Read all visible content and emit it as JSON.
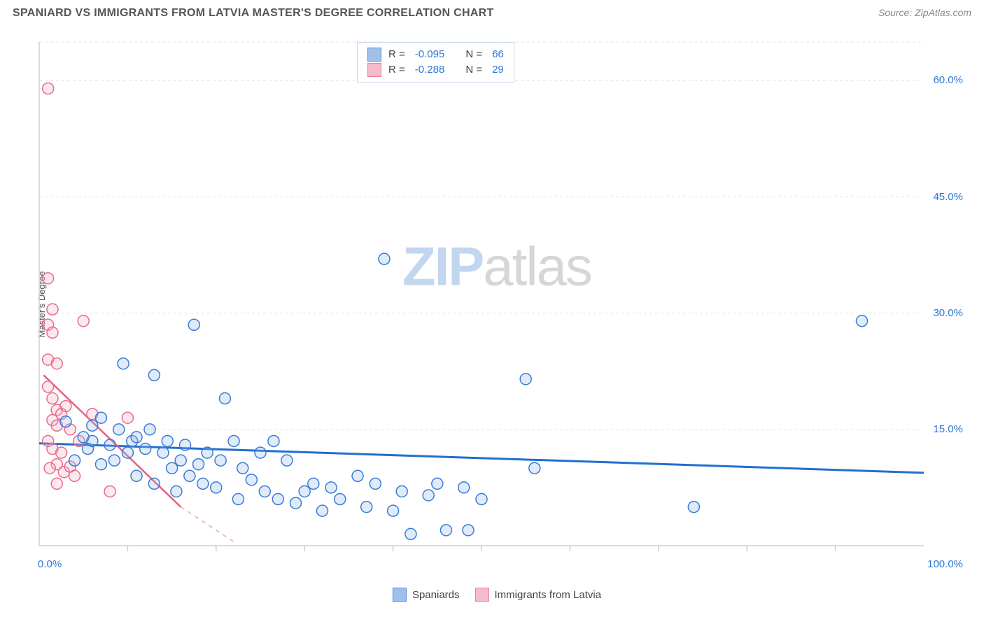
{
  "header": {
    "title": "SPANIARD VS IMMIGRANTS FROM LATVIA MASTER'S DEGREE CORRELATION CHART",
    "source": "Source: ZipAtlas.com"
  },
  "watermark": {
    "zip": "ZIP",
    "atlas": "atlas"
  },
  "chart": {
    "type": "scatter",
    "ylabel": "Master's Degree",
    "xlim": [
      0,
      100
    ],
    "ylim": [
      0,
      65
    ],
    "background_color": "#ffffff",
    "grid_color": "#e3e3e3",
    "grid_dash": "4,4",
    "axis_line_color": "#cfcfcf",
    "xtick_marks": [
      10,
      20,
      30,
      40,
      50,
      60,
      70,
      80,
      90
    ],
    "xtick_labels": [
      {
        "v": 0,
        "label": "0.0%"
      },
      {
        "v": 100,
        "label": "100.0%"
      }
    ],
    "ytick_labels": [
      {
        "v": 15,
        "label": "15.0%"
      },
      {
        "v": 30,
        "label": "30.0%"
      },
      {
        "v": 45,
        "label": "45.0%"
      },
      {
        "v": 60,
        "label": "60.0%"
      }
    ],
    "ygrid_lines": [
      15,
      30,
      45,
      60,
      65
    ],
    "marker_radius": 8,
    "marker_stroke_width": 1.5,
    "marker_fill_opacity": 0.28,
    "series": [
      {
        "name": "Spaniards",
        "color_stroke": "#3a7bd5",
        "color_fill": "#8fb6e8",
        "R": "-0.095",
        "N": "66",
        "trend": {
          "x1": 0,
          "y1": 13.2,
          "x2": 100,
          "y2": 9.4,
          "color": "#1f6fd1",
          "width": 3
        },
        "points": [
          [
            3,
            16
          ],
          [
            4,
            11
          ],
          [
            5,
            14
          ],
          [
            5.5,
            12.5
          ],
          [
            6,
            13.5
          ],
          [
            6,
            15.5
          ],
          [
            7,
            16.5
          ],
          [
            7,
            10.5
          ],
          [
            8,
            13
          ],
          [
            8.5,
            11
          ],
          [
            9,
            15
          ],
          [
            9.5,
            23.5
          ],
          [
            10,
            12
          ],
          [
            10.5,
            13.5
          ],
          [
            11,
            9
          ],
          [
            11,
            14
          ],
          [
            12,
            12.5
          ],
          [
            12.5,
            15
          ],
          [
            13,
            22
          ],
          [
            13,
            8
          ],
          [
            14,
            12
          ],
          [
            14.5,
            13.5
          ],
          [
            15,
            10
          ],
          [
            15.5,
            7
          ],
          [
            16,
            11
          ],
          [
            16.5,
            13
          ],
          [
            17,
            9
          ],
          [
            17.5,
            28.5
          ],
          [
            18,
            10.5
          ],
          [
            18.5,
            8
          ],
          [
            19,
            12
          ],
          [
            20,
            7.5
          ],
          [
            20.5,
            11
          ],
          [
            21,
            19
          ],
          [
            22,
            13.5
          ],
          [
            22.5,
            6
          ],
          [
            23,
            10
          ],
          [
            24,
            8.5
          ],
          [
            25,
            12
          ],
          [
            25.5,
            7
          ],
          [
            26.5,
            13.5
          ],
          [
            27,
            6
          ],
          [
            28,
            11
          ],
          [
            29,
            5.5
          ],
          [
            30,
            7
          ],
          [
            31,
            8
          ],
          [
            32,
            4.5
          ],
          [
            33,
            7.5
          ],
          [
            34,
            6
          ],
          [
            36,
            9
          ],
          [
            37,
            5
          ],
          [
            38,
            8
          ],
          [
            39,
            37
          ],
          [
            40,
            4.5
          ],
          [
            41,
            7
          ],
          [
            42,
            1.5
          ],
          [
            44,
            6.5
          ],
          [
            45,
            8
          ],
          [
            46,
            2
          ],
          [
            48,
            7.5
          ],
          [
            50,
            6
          ],
          [
            55,
            21.5
          ],
          [
            56,
            10
          ],
          [
            74,
            5
          ],
          [
            93,
            29
          ],
          [
            48.5,
            2
          ]
        ]
      },
      {
        "name": "Immigrants from Latvia",
        "color_stroke": "#e96a8d",
        "color_fill": "#f5b0c3",
        "R": "-0.288",
        "N": "29",
        "trend_solid": {
          "x1": 0.5,
          "y1": 22,
          "x2": 16,
          "y2": 5,
          "color": "#e7617f",
          "width": 2.5
        },
        "trend_dashed": {
          "x1": 16,
          "y1": 5,
          "x2": 22,
          "y2": 0.5,
          "color": "#f2b9c8",
          "width": 2,
          "dash": "6,6"
        },
        "points": [
          [
            1,
            59
          ],
          [
            1,
            34.5
          ],
          [
            1.5,
            30.5
          ],
          [
            1,
            28.5
          ],
          [
            1.5,
            27.5
          ],
          [
            1,
            24
          ],
          [
            2,
            23.5
          ],
          [
            1,
            20.5
          ],
          [
            1.5,
            19
          ],
          [
            2,
            17.5
          ],
          [
            2.5,
            17
          ],
          [
            3,
            18
          ],
          [
            1.5,
            16.2
          ],
          [
            2,
            15.5
          ],
          [
            3.5,
            15
          ],
          [
            1,
            13.5
          ],
          [
            1.5,
            12.5
          ],
          [
            2.5,
            12
          ],
          [
            2,
            10.5
          ],
          [
            1.2,
            10
          ],
          [
            2.8,
            9.5
          ],
          [
            3.5,
            10.2
          ],
          [
            4,
            9
          ],
          [
            2,
            8
          ],
          [
            5,
            29
          ],
          [
            6,
            17
          ],
          [
            8,
            7
          ],
          [
            10,
            16.5
          ],
          [
            4.5,
            13.5
          ]
        ]
      }
    ]
  },
  "legend_top": {
    "R_label": "R =",
    "N_label": "N ="
  },
  "legend_bottom": {
    "items": [
      "Spaniards",
      "Immigrants from Latvia"
    ]
  }
}
